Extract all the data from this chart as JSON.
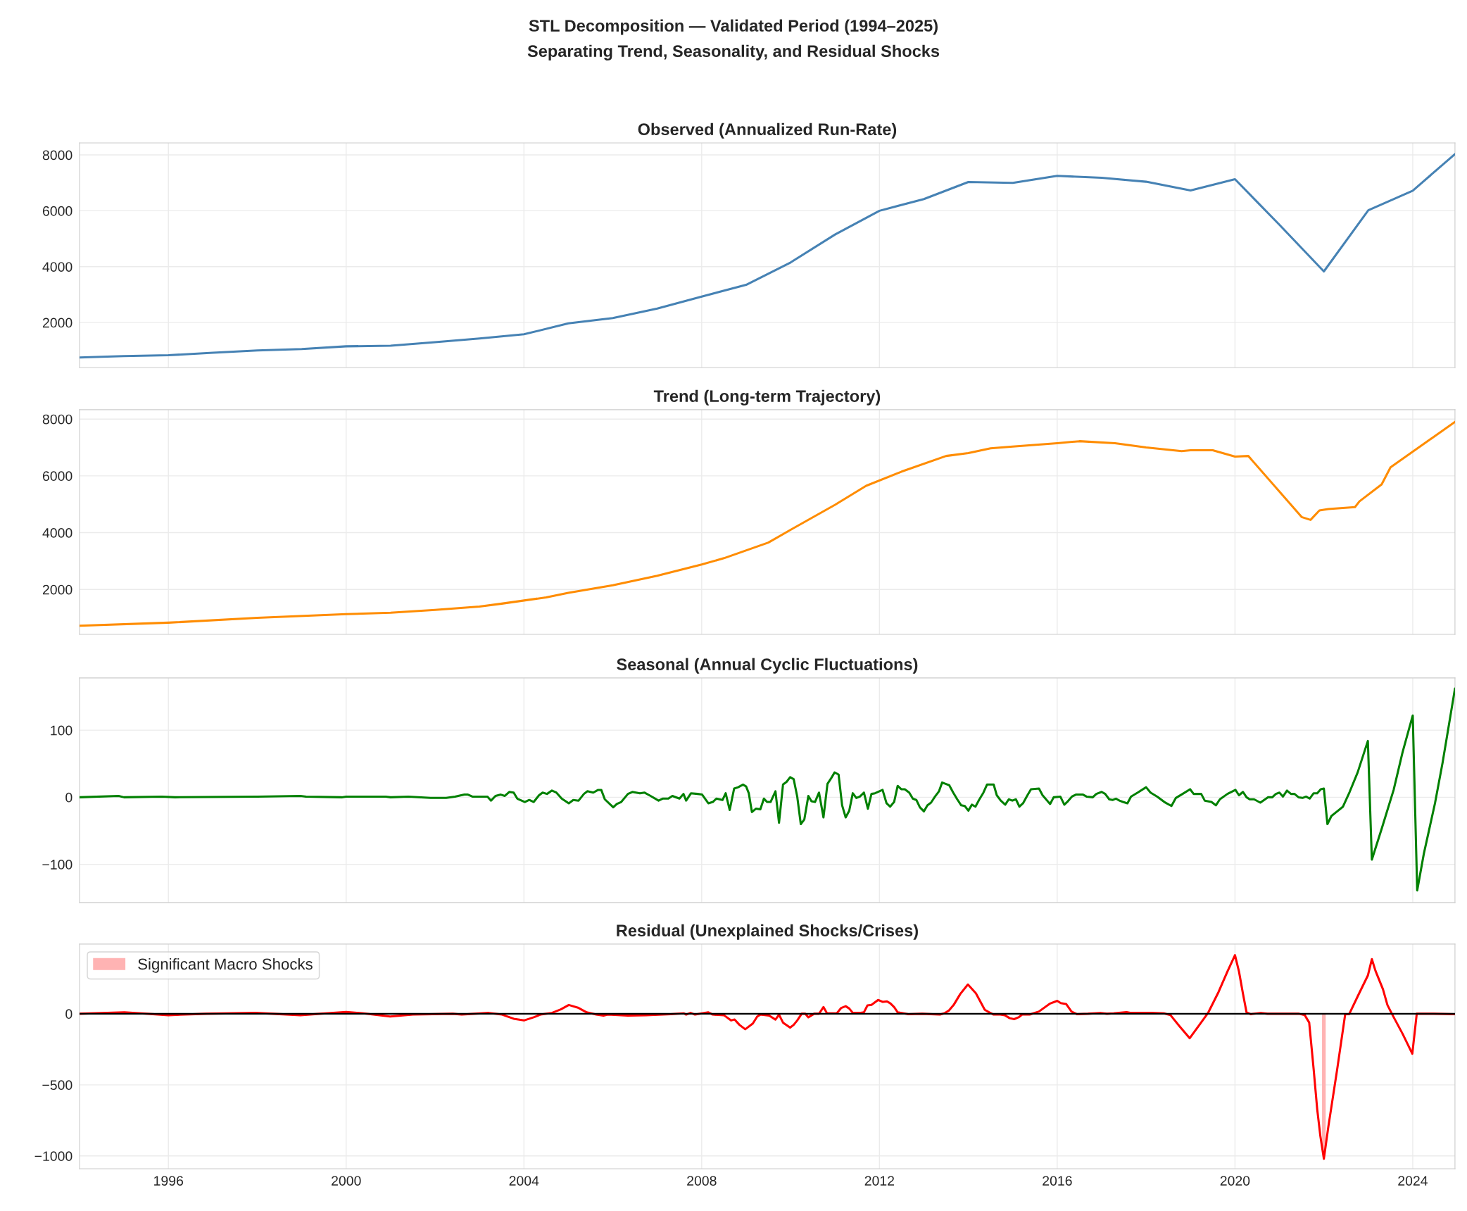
{
  "chart_data": [
    {
      "type": "other",
      "title": "STL Decomposition — Validated Period (1994–2025)",
      "subtitle": "Separating Trend, Seasonality, and Residual Shocks"
    },
    {
      "type": "line",
      "title": "Observed (Annualized Run-Rate)",
      "grid": true,
      "tick_labels": "y",
      "xlim": [
        1994.0,
        2024.95
      ],
      "xticks": [
        1996,
        2000,
        2004,
        2008,
        2012,
        2016,
        2020,
        2024
      ],
      "ylim": [
        390,
        8430
      ],
      "yticks": [
        2000,
        4000,
        6000,
        8000
      ],
      "series": [
        {
          "color": "#4682b4",
          "x": [
            1994,
            1995,
            1996,
            1997,
            1998,
            1999,
            2000,
            2001,
            2002,
            2003,
            2004,
            2005,
            2006,
            2007,
            2008,
            2009,
            2010,
            2011,
            2012,
            2013,
            2014,
            2015,
            2016,
            2017,
            2018,
            2019,
            2020,
            2021,
            2022,
            2023,
            2024,
            2024.95
          ],
          "values": [
            750,
            800,
            830,
            920,
            1000,
            1050,
            1150,
            1170,
            1300,
            1430,
            1580,
            1970,
            2160,
            2500,
            2930,
            3350,
            4150,
            5150,
            6000,
            6420,
            7030,
            7000,
            7250,
            7180,
            7040,
            6730,
            7130,
            5500,
            3830,
            6020,
            6720,
            8030
          ]
        }
      ]
    },
    {
      "type": "line",
      "title": "Trend (Long-term Trajectory)",
      "grid": true,
      "tick_labels": "y",
      "xlim": [
        1994.0,
        2024.95
      ],
      "xticks": [
        1996,
        2000,
        2004,
        2008,
        2012,
        2016,
        2020,
        2024
      ],
      "ylim": [
        420,
        8330
      ],
      "yticks": [
        2000,
        4000,
        6000,
        8000
      ],
      "series": [
        {
          "color": "#ff8c00",
          "x": [
            1994,
            1996,
            1998,
            2000,
            2001,
            2002,
            2003,
            2003.5,
            2004.5,
            2005,
            2006,
            2007,
            2008,
            2008.5,
            2009.5,
            2010,
            2011,
            2011.7,
            2012.5,
            2013.5,
            2014,
            2014.5,
            2015,
            2016,
            2016.5,
            2017.3,
            2018,
            2018.8,
            2019,
            2019.5,
            2020,
            2020.3,
            2021.5,
            2021.7,
            2021.9,
            2022.1,
            2022.7,
            2022.8,
            2023.3,
            2023.5,
            2024.95
          ],
          "values": [
            720,
            830,
            1000,
            1130,
            1180,
            1280,
            1400,
            1500,
            1720,
            1880,
            2150,
            2480,
            2880,
            3100,
            3650,
            4100,
            4980,
            5650,
            6150,
            6700,
            6800,
            6970,
            7030,
            7150,
            7220,
            7150,
            7000,
            6870,
            6900,
            6900,
            6680,
            6700,
            4550,
            4450,
            4780,
            4830,
            4900,
            5100,
            5700,
            6300,
            7900
          ]
        }
      ]
    },
    {
      "type": "line",
      "title": "Seasonal (Annual Cyclic Fluctuations)",
      "grid": true,
      "tick_labels": "y",
      "xlim": [
        1994.0,
        2024.95
      ],
      "xticks": [
        1996,
        2000,
        2004,
        2008,
        2012,
        2016,
        2020,
        2024
      ],
      "ylim": [
        -157,
        178
      ],
      "yticks": [
        {
          "value": -100,
          "label": "−100"
        },
        0,
        100
      ],
      "series": [
        {
          "color": "#008000",
          "x": [
            1994.0,
            1994.88,
            1995.0,
            1995.85,
            1996.15,
            1998.0,
            1998.97,
            1999.1,
            1999.9,
            2000.0,
            2000.89,
            2001.0,
            2001.4,
            2001.9,
            2002.25,
            2002.45,
            2002.66,
            2002.74,
            2002.84,
            2003.0,
            2003.1,
            2003.18,
            2003.26,
            2003.36,
            2003.48,
            2003.57,
            2003.67,
            2003.77,
            2003.85,
            2004.02,
            2004.12,
            2004.22,
            2004.34,
            2004.42,
            2004.52,
            2004.63,
            2004.73,
            2004.85,
            2005.01,
            2005.11,
            2005.23,
            2005.35,
            2005.43,
            2005.56,
            2005.67,
            2005.74,
            2005.82,
            2006.01,
            2006.09,
            2006.19,
            2006.34,
            2006.44,
            2006.61,
            2006.71,
            2006.85,
            2007.03,
            2007.12,
            2007.25,
            2007.34,
            2007.5,
            2007.59,
            2007.65,
            2007.76,
            2007.91,
            2008.01,
            2008.15,
            2008.25,
            2008.33,
            2008.47,
            2008.54,
            2008.63,
            2008.73,
            2008.82,
            2008.93,
            2009.0,
            2009.06,
            2009.13,
            2009.22,
            2009.32,
            2009.4,
            2009.47,
            2009.55,
            2009.66,
            2009.74,
            2009.83,
            2009.91,
            2009.99,
            2010.07,
            2010.15,
            2010.23,
            2010.31,
            2010.4,
            2010.47,
            2010.55,
            2010.64,
            2010.74,
            2010.83,
            2010.91,
            2010.99,
            2011.08,
            2011.16,
            2011.24,
            2011.32,
            2011.4,
            2011.48,
            2011.56,
            2011.65,
            2011.74,
            2011.82,
            2011.9,
            2012.07,
            2012.16,
            2012.24,
            2012.33,
            2012.41,
            2012.49,
            2012.57,
            2012.67,
            2012.75,
            2012.83,
            2012.91,
            2013.0,
            2013.08,
            2013.16,
            2013.25,
            2013.34,
            2013.41,
            2013.49,
            2013.57,
            2013.66,
            2013.75,
            2013.84,
            2013.92,
            2014.0,
            2014.08,
            2014.16,
            2014.24,
            2014.34,
            2014.42,
            2014.57,
            2014.64,
            2014.73,
            2014.83,
            2014.91,
            2014.99,
            2015.07,
            2015.15,
            2015.23,
            2015.33,
            2015.41,
            2015.59,
            2015.67,
            2015.84,
            2015.92,
            2016.07,
            2016.16,
            2016.24,
            2016.33,
            2016.42,
            2016.58,
            2016.66,
            2016.8,
            2016.88,
            2017.0,
            2017.08,
            2017.17,
            2017.25,
            2017.32,
            2017.4,
            2017.48,
            2017.58,
            2017.66,
            2017.81,
            2018.0,
            2018.1,
            2018.25,
            2018.41,
            2018.57,
            2018.67,
            2018.82,
            2018.99,
            2019.07,
            2019.24,
            2019.32,
            2019.47,
            2019.57,
            2019.66,
            2019.83,
            2020.01,
            2020.09,
            2020.18,
            2020.26,
            2020.33,
            2020.43,
            2020.57,
            2020.74,
            2020.84,
            2020.92,
            2021.0,
            2021.08,
            2021.17,
            2021.26,
            2021.34,
            2021.43,
            2021.52,
            2021.6,
            2021.68,
            2021.77,
            2021.85,
            2021.93,
            2022.0,
            2022.08,
            2022.17,
            2022.3,
            2022.43,
            2022.58,
            2022.76,
            2022.99,
            2023.08,
            2023.31,
            2023.57,
            2023.77,
            2024.0,
            2024.1,
            2024.25,
            2024.5,
            2024.67,
            2024.95
          ],
          "values": [
            0,
            2,
            0,
            1,
            0,
            1,
            2,
            1,
            0,
            1,
            1,
            0,
            1,
            -1,
            -1,
            1,
            4,
            4,
            1,
            1,
            1,
            1,
            -5,
            2,
            4,
            2,
            8,
            7,
            -2,
            -7,
            -4,
            -7,
            3,
            7,
            5,
            10,
            7,
            -2,
            -9,
            -4,
            -5,
            5,
            9,
            7,
            11,
            11,
            -3,
            -15,
            -10,
            -7,
            5,
            8,
            6,
            7,
            2,
            -5,
            -2,
            -2,
            2,
            -2,
            5,
            -5,
            6,
            5,
            4,
            -9,
            -7,
            -2,
            -4,
            6,
            -19,
            13,
            15,
            19,
            16,
            6,
            -22,
            -17,
            -18,
            -2,
            -7,
            -7,
            9,
            -38,
            19,
            23,
            30,
            27,
            1,
            -40,
            -33,
            2,
            -6,
            -7,
            7,
            -30,
            20,
            28,
            37,
            34,
            -12,
            -30,
            -20,
            6,
            -1,
            1,
            7,
            -17,
            5,
            6,
            11,
            -9,
            -14,
            -7,
            17,
            12,
            12,
            7,
            -2,
            -4,
            -15,
            -21,
            -12,
            -8,
            1,
            9,
            22,
            20,
            18,
            7,
            -3,
            -12,
            -13,
            -20,
            -11,
            -14,
            -4,
            7,
            19,
            19,
            3,
            -5,
            -11,
            -3,
            -5,
            -3,
            -14,
            -9,
            3,
            12,
            13,
            3,
            -10,
            0,
            1,
            -11,
            -6,
            1,
            4,
            4,
            1,
            0,
            5,
            8,
            5,
            -3,
            -4,
            -2,
            -5,
            -7,
            -9,
            1,
            7,
            15,
            7,
            1,
            -7,
            -13,
            -1,
            5,
            12,
            5,
            5,
            -5,
            -7,
            -12,
            -3,
            5,
            11,
            3,
            8,
            0,
            -3,
            -3,
            -8,
            0,
            0,
            5,
            7,
            1,
            10,
            5,
            5,
            0,
            -1,
            1,
            -2,
            6,
            6,
            12,
            13,
            -40,
            -28,
            -21,
            -14,
            8,
            37,
            84,
            -93,
            -45,
            11,
            67,
            122,
            -139,
            -84,
            -9,
            51,
            162
          ]
        }
      ]
    },
    {
      "type": "line",
      "title": "Residual (Unexplained Shocks/Crises)",
      "grid": true,
      "legend": "top left",
      "xlim": [
        1994.0,
        2024.95
      ],
      "xticks": [
        1996,
        2000,
        2004,
        2008,
        2012,
        2016,
        2020,
        2024
      ],
      "ylim": [
        -1090,
        490
      ],
      "yticks": [
        {
          "value": -1000,
          "label": "−1000"
        },
        {
          "value": -500,
          "label": "−500"
        },
        0
      ],
      "ref_lines": [
        {
          "axis": "y",
          "value": 0,
          "color": "#000000"
        }
      ],
      "bands": [
        {
          "axis": "x",
          "from": 2021.97,
          "to": 2022.03,
          "label": "Significant Macro Shocks",
          "color": "#ffb3b3"
        }
      ],
      "series": [
        {
          "color": "#ff0000",
          "x": [
            1994.0,
            1995.01,
            1996.0,
            1996.85,
            1997.96,
            1998.97,
            2000.0,
            2000.38,
            2000.99,
            2001.5,
            2002.4,
            2002.6,
            2003.21,
            2003.51,
            2003.77,
            2004.0,
            2004.22,
            2004.37,
            2004.63,
            2004.83,
            2005.01,
            2005.23,
            2005.41,
            2005.63,
            2005.79,
            2005.89,
            2006.34,
            2006.75,
            2007.3,
            2007.6,
            2007.65,
            2007.75,
            2007.85,
            2008.15,
            2008.25,
            2008.5,
            2008.66,
            2008.74,
            2008.85,
            2008.98,
            2009.15,
            2009.25,
            2009.32,
            2009.52,
            2009.66,
            2009.74,
            2009.83,
            2009.99,
            2010.07,
            2010.15,
            2010.25,
            2010.33,
            2010.4,
            2010.53,
            2010.64,
            2010.74,
            2010.82,
            2011.04,
            2011.14,
            2011.24,
            2011.32,
            2011.4,
            2011.56,
            2011.65,
            2011.73,
            2011.82,
            2011.97,
            2012.07,
            2012.17,
            2012.25,
            2012.33,
            2012.41,
            2012.65,
            2012.96,
            2013.36,
            2013.46,
            2013.56,
            2013.67,
            2013.82,
            2013.99,
            2014.17,
            2014.37,
            2014.47,
            2014.57,
            2014.72,
            2014.82,
            2014.93,
            2015.03,
            2015.13,
            2015.21,
            2015.38,
            2015.59,
            2015.84,
            2016.0,
            2016.08,
            2016.2,
            2016.32,
            2016.44,
            2016.69,
            2016.97,
            2017.12,
            2017.27,
            2017.56,
            2017.66,
            2018.11,
            2018.4,
            2018.55,
            2018.75,
            2018.98,
            2019.2,
            2019.4,
            2019.63,
            2019.83,
            2020.0,
            2020.09,
            2020.18,
            2020.26,
            2020.35,
            2020.58,
            2020.73,
            2021.44,
            2021.57,
            2021.67,
            2021.77,
            2021.85,
            2021.92,
            2022.0,
            2022.1,
            2022.3,
            2022.48,
            2022.57,
            2022.76,
            2022.99,
            2023.08,
            2023.16,
            2023.33,
            2023.43,
            2023.53,
            2023.77,
            2023.99,
            2024.09,
            2024.47,
            2024.95
          ],
          "values": [
            0,
            10,
            -10,
            0,
            6,
            -10,
            13,
            3,
            -19,
            -6,
            0,
            -6,
            6,
            -6,
            -35,
            -47,
            -25,
            -6,
            6,
            31,
            62,
            41,
            10,
            -6,
            -13,
            -6,
            -13,
            -10,
            -3,
            3,
            -6,
            6,
            -6,
            10,
            -6,
            -10,
            -47,
            -40,
            -78,
            -109,
            -69,
            -19,
            -6,
            -13,
            -41,
            -6,
            -62,
            -97,
            -78,
            -47,
            0,
            0,
            -25,
            0,
            0,
            47,
            3,
            3,
            41,
            53,
            37,
            6,
            6,
            10,
            59,
            62,
            97,
            84,
            87,
            72,
            47,
            10,
            -3,
            0,
            -6,
            3,
            22,
            62,
            140,
            206,
            144,
            28,
            10,
            -6,
            -6,
            -10,
            -31,
            -38,
            -25,
            -6,
            -6,
            16,
            72,
            91,
            75,
            69,
            16,
            -3,
            0,
            6,
            0,
            3,
            12,
            6,
            6,
            3,
            -10,
            -87,
            -172,
            -78,
            9,
            153,
            297,
            412,
            297,
            140,
            10,
            -3,
            6,
            0,
            0,
            -10,
            -62,
            -390,
            -671,
            -858,
            -1020,
            -796,
            -390,
            -3,
            -3,
            122,
            269,
            384,
            303,
            172,
            62,
            0,
            -140,
            -281,
            0,
            0,
            -3
          ]
        }
      ]
    }
  ]
}
